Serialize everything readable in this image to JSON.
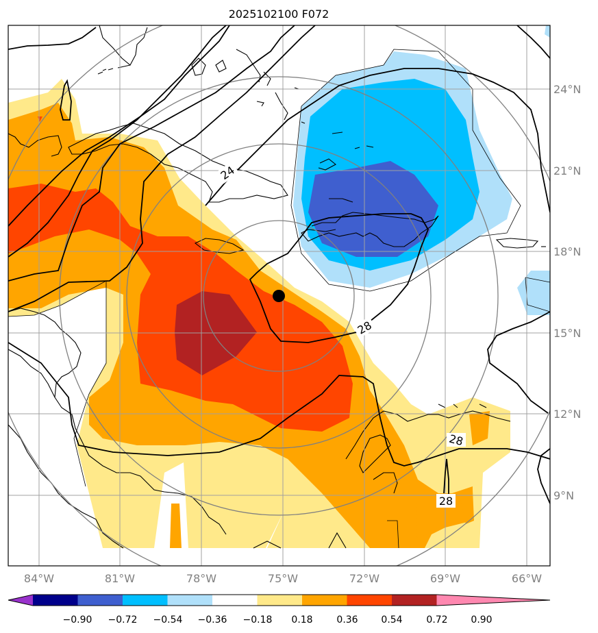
{
  "title": "2025102100 F072",
  "map": {
    "lon_range": [
      -85,
      -65
    ],
    "lat_range": [
      7,
      27
    ],
    "lon_ticks": [
      -84,
      -81,
      -78,
      -75,
      -72,
      -69,
      -66
    ],
    "lon_tick_labels": [
      "84°W",
      "81°W",
      "78°W",
      "75°W",
      "72°W",
      "69°W",
      "66°W"
    ],
    "lat_ticks": [
      9,
      12,
      15,
      18,
      21,
      24
    ],
    "lat_tick_labels": [
      "9°N",
      "12°N",
      "15°N",
      "18°N",
      "21°N",
      "24°N"
    ],
    "grid": true,
    "storm_center": {
      "lon": -75.0,
      "lat": 16.4
    },
    "contour_labels": [
      "24",
      "28",
      "28",
      "28"
    ]
  },
  "colorbar": {
    "levels": [
      -0.9,
      -0.72,
      -0.54,
      -0.36,
      -0.18,
      0.18,
      0.36,
      0.54,
      0.72,
      0.9
    ],
    "labels": [
      "−0.90",
      "−0.72",
      "−0.54",
      "−0.36",
      "−0.18",
      "0.18",
      "0.36",
      "0.54",
      "0.72",
      "0.90"
    ],
    "colors": [
      "#9932cc",
      "#00008b",
      "#3f5fcf",
      "#00bfff",
      "#b0e0fa",
      "#ffffff",
      "#ffe98a",
      "#ffa500",
      "#ff4500",
      "#b22222",
      "#ff88b0"
    ],
    "extend": "both"
  }
}
